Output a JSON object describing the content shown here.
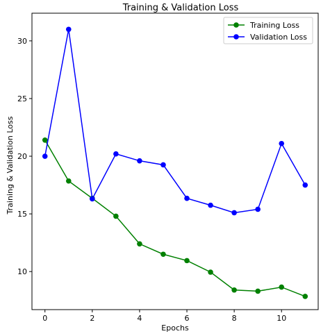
{
  "chart_data": {
    "type": "line",
    "title": "Training & Validation Loss",
    "xlabel": "Epochs",
    "ylabel": "Training & Validation Loss",
    "x": [
      0,
      1,
      2,
      3,
      4,
      5,
      6,
      7,
      8,
      9,
      10,
      11
    ],
    "xticks": [
      "0",
      "2",
      "4",
      "6",
      "8",
      "10"
    ],
    "yticks": [
      "10",
      "15",
      "20",
      "25",
      "30"
    ],
    "xlim": [
      -0.55,
      11.55
    ],
    "ylim": [
      6.7,
      32.4
    ],
    "grid": false,
    "legend_position": "top-right",
    "series": [
      {
        "name": "Training Loss",
        "color": "#008000",
        "values": [
          21.4,
          17.85,
          16.35,
          14.8,
          12.4,
          11.5,
          10.95,
          9.95,
          8.4,
          8.3,
          8.65,
          7.85
        ]
      },
      {
        "name": "Validation Loss",
        "color": "#0000ff",
        "values": [
          20.0,
          31.0,
          16.3,
          20.2,
          19.6,
          19.25,
          16.35,
          15.75,
          15.1,
          15.4,
          21.1,
          17.5
        ]
      }
    ]
  }
}
